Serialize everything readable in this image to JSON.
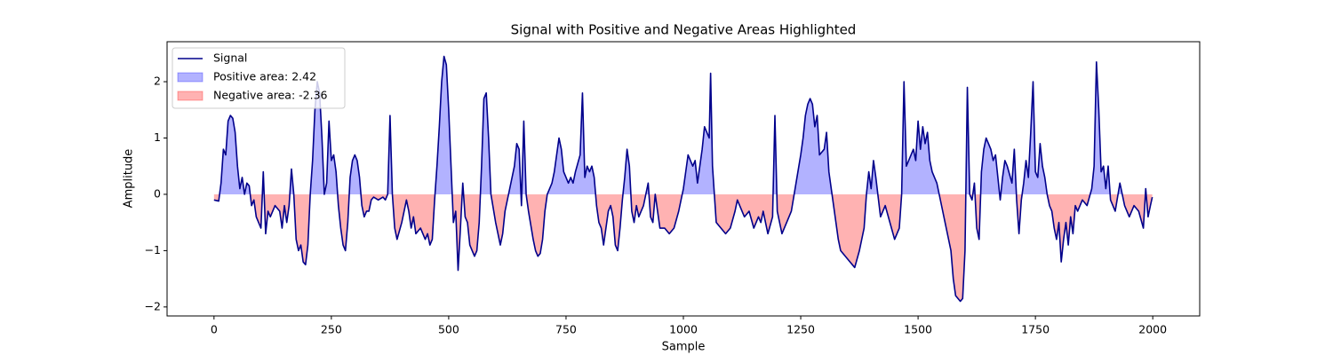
{
  "chart_data": {
    "type": "line",
    "title": "Signal with Positive and Negative Areas Highlighted",
    "x_label": "Sample",
    "y_label": "Amplitude",
    "x": [
      0,
      10,
      15,
      20,
      25,
      30,
      35,
      40,
      45,
      50,
      55,
      60,
      65,
      70,
      75,
      80,
      85,
      90,
      95,
      100,
      105,
      110,
      115,
      120,
      130,
      140,
      145,
      150,
      155,
      160,
      165,
      170,
      175,
      180,
      185,
      190,
      195,
      200,
      205,
      210,
      215,
      220,
      225,
      230,
      235,
      240,
      245,
      250,
      255,
      260,
      265,
      270,
      275,
      280,
      285,
      290,
      295,
      300,
      305,
      310,
      315,
      320,
      325,
      330,
      335,
      340,
      350,
      360,
      365,
      370,
      375,
      380,
      385,
      390,
      400,
      410,
      415,
      420,
      425,
      430,
      440,
      450,
      455,
      460,
      465,
      470,
      475,
      480,
      485,
      490,
      495,
      500,
      505,
      510,
      515,
      520,
      525,
      530,
      535,
      540,
      545,
      550,
      555,
      560,
      565,
      570,
      575,
      580,
      585,
      590,
      600,
      610,
      615,
      620,
      630,
      640,
      645,
      650,
      655,
      660,
      665,
      670,
      680,
      685,
      690,
      695,
      700,
      705,
      710,
      720,
      725,
      730,
      735,
      740,
      745,
      750,
      755,
      760,
      765,
      770,
      780,
      785,
      790,
      795,
      800,
      805,
      810,
      815,
      820,
      825,
      830,
      835,
      840,
      845,
      850,
      855,
      860,
      865,
      870,
      875,
      880,
      885,
      890,
      895,
      900,
      905,
      915,
      925,
      930,
      935,
      940,
      945,
      950,
      960,
      970,
      980,
      990,
      1000,
      1005,
      1010,
      1015,
      1020,
      1025,
      1030,
      1035,
      1040,
      1045,
      1055,
      1058,
      1062,
      1066,
      1070,
      1080,
      1090,
      1100,
      1110,
      1115,
      1120,
      1130,
      1140,
      1150,
      1160,
      1165,
      1170,
      1180,
      1190,
      1195,
      1200,
      1210,
      1220,
      1230,
      1240,
      1250,
      1255,
      1260,
      1265,
      1270,
      1275,
      1280,
      1285,
      1290,
      1300,
      1305,
      1310,
      1320,
      1330,
      1335,
      1345,
      1355,
      1365,
      1375,
      1385,
      1390,
      1395,
      1400,
      1405,
      1410,
      1420,
      1430,
      1440,
      1450,
      1460,
      1465,
      1470,
      1475,
      1480,
      1485,
      1490,
      1495,
      1500,
      1505,
      1510,
      1515,
      1520,
      1525,
      1530,
      1540,
      1550,
      1560,
      1570,
      1575,
      1580,
      1590,
      1595,
      1600,
      1605,
      1610,
      1615,
      1620,
      1625,
      1630,
      1635,
      1640,
      1645,
      1650,
      1655,
      1660,
      1665,
      1670,
      1675,
      1680,
      1685,
      1690,
      1700,
      1705,
      1710,
      1715,
      1720,
      1725,
      1730,
      1735,
      1740,
      1745,
      1750,
      1755,
      1760,
      1765,
      1770,
      1775,
      1780,
      1785,
      1790,
      1795,
      1800,
      1805,
      1810,
      1815,
      1820,
      1825,
      1830,
      1835,
      1840,
      1850,
      1860,
      1870,
      1875,
      1880,
      1885,
      1890,
      1895,
      1900,
      1905,
      1910,
      1920,
      1930,
      1940,
      1950,
      1960,
      1970,
      1980,
      1985,
      1990,
      1995,
      1999
    ],
    "series": [
      {
        "name": "Signal",
        "color": "#00008b",
        "values": [
          -0.1,
          -0.12,
          0.2,
          0.8,
          0.7,
          1.3,
          1.4,
          1.35,
          1.1,
          0.5,
          0.1,
          0.3,
          0,
          0.2,
          0.15,
          -0.2,
          -0.1,
          -0.4,
          -0.5,
          -0.6,
          0.4,
          -0.7,
          -0.3,
          -0.4,
          -0.2,
          -0.3,
          -0.6,
          -0.2,
          -0.5,
          -0.2,
          0.45,
          0,
          -0.8,
          -1,
          -0.9,
          -1.2,
          -1.25,
          -0.9,
          0,
          0.6,
          1.5,
          2.0,
          1.8,
          1.0,
          0,
          0.2,
          1.3,
          0.6,
          0.7,
          0.4,
          -0.2,
          -0.6,
          -0.9,
          -1.0,
          -0.5,
          0.3,
          0.6,
          0.7,
          0.6,
          0.3,
          -0.2,
          -0.4,
          -0.3,
          -0.3,
          -0.1,
          -0.05,
          -0.1,
          -0.05,
          -0.1,
          0,
          1.4,
          0,
          -0.6,
          -0.8,
          -0.5,
          -0.1,
          -0.3,
          -0.6,
          -0.4,
          -0.7,
          -0.6,
          -0.8,
          -0.7,
          -0.9,
          -0.8,
          -0.1,
          0.5,
          1.2,
          2.0,
          2.45,
          2.3,
          1.5,
          0.5,
          -0.5,
          -0.3,
          -1.35,
          -0.6,
          0.2,
          -0.4,
          -0.5,
          -0.9,
          -1.0,
          -1.1,
          -1.0,
          -0.5,
          0.5,
          1.7,
          1.8,
          1.0,
          0,
          -0.5,
          -0.9,
          -0.7,
          -0.3,
          0.1,
          0.5,
          0.9,
          0.8,
          -0.2,
          1.3,
          0,
          -0.3,
          -0.8,
          -1.0,
          -1.1,
          -1.05,
          -0.8,
          -0.3,
          0,
          0.2,
          0.4,
          0.7,
          1.0,
          0.8,
          0.4,
          0.3,
          0.2,
          0.3,
          0.2,
          0.4,
          0.7,
          1.8,
          0.3,
          0.5,
          0.4,
          0.5,
          0.3,
          -0.2,
          -0.5,
          -0.6,
          -0.9,
          -0.6,
          -0.3,
          -0.2,
          -0.4,
          -0.9,
          -1.0,
          -0.6,
          -0.1,
          0.3,
          0.8,
          0.5,
          -0.3,
          -0.5,
          -0.2,
          -0.4,
          -0.2,
          0.2,
          -0.4,
          -0.5,
          0,
          -0.3,
          -0.6,
          -0.6,
          -0.7,
          -0.6,
          -0.3,
          0.1,
          0.4,
          0.7,
          0.6,
          0.5,
          0.6,
          0.2,
          0.5,
          0.8,
          1.2,
          1.0,
          2.15,
          0.5,
          0,
          -0.5,
          -0.6,
          -0.7,
          -0.6,
          -0.3,
          -0.1,
          -0.2,
          -0.4,
          -0.3,
          -0.6,
          -0.4,
          -0.5,
          -0.3,
          -0.7,
          -0.4,
          1.4,
          -0.3,
          -0.7,
          -0.5,
          -0.3,
          0.2,
          0.7,
          1.0,
          1.4,
          1.6,
          1.7,
          1.6,
          1.2,
          1.4,
          0.7,
          0.8,
          1.1,
          0.4,
          -0.2,
          -0.8,
          -1.0,
          -1.1,
          -1.2,
          -1.3,
          -1.0,
          -0.6,
          0,
          0.4,
          0.1,
          0.6,
          0.3,
          -0.4,
          -0.2,
          -0.5,
          -0.8,
          -0.6,
          0,
          2.0,
          0.5,
          0.6,
          0.7,
          0.8,
          0.6,
          1.3,
          0.8,
          1.2,
          0.9,
          1.1,
          0.6,
          0.4,
          0.2,
          -0.2,
          -0.6,
          -1.0,
          -1.5,
          -1.8,
          -1.9,
          -1.85,
          -1.0,
          1.9,
          0,
          -0.1,
          0.2,
          -0.6,
          -0.8,
          0.4,
          0.8,
          1.0,
          0.9,
          0.8,
          0.6,
          0.7,
          0.3,
          -0.1,
          0.3,
          0.6,
          0.5,
          0.2,
          0.8,
          -0.1,
          -0.7,
          -0.1,
          0.2,
          0.6,
          0.3,
          1.1,
          2.0,
          0.4,
          0.3,
          0.9,
          0.5,
          0.3,
          0,
          -0.2,
          -0.3,
          -0.6,
          -0.8,
          -0.5,
          -1.2,
          -0.8,
          -0.5,
          -0.9,
          -0.4,
          -0.7,
          -0.2,
          -0.3,
          -0.1,
          -0.2,
          0.1,
          0.5,
          2.35,
          1.5,
          0.4,
          0.5,
          0.1,
          0.5,
          -0.1,
          -0.3,
          0.2,
          -0.2,
          -0.4,
          -0.2,
          -0.3,
          -0.6,
          0.1,
          -0.4,
          -0.2,
          -0.05
        ]
      }
    ],
    "positive_fill": {
      "name": "Positive area: 2.42",
      "color": "#0000ff"
    },
    "negative_fill": {
      "name": "Negative area: -2.36",
      "color": "#ff0000"
    },
    "xlim": [
      -100,
      2100
    ],
    "xticks": [
      0,
      250,
      500,
      750,
      1000,
      1250,
      1500,
      1750,
      2000
    ],
    "ylim": [
      -2.16,
      2.71
    ],
    "yticks": [
      {
        "value": -2,
        "label": "−2"
      },
      {
        "value": -1,
        "label": "−1"
      },
      0,
      1,
      2
    ],
    "legend": "upper left"
  }
}
